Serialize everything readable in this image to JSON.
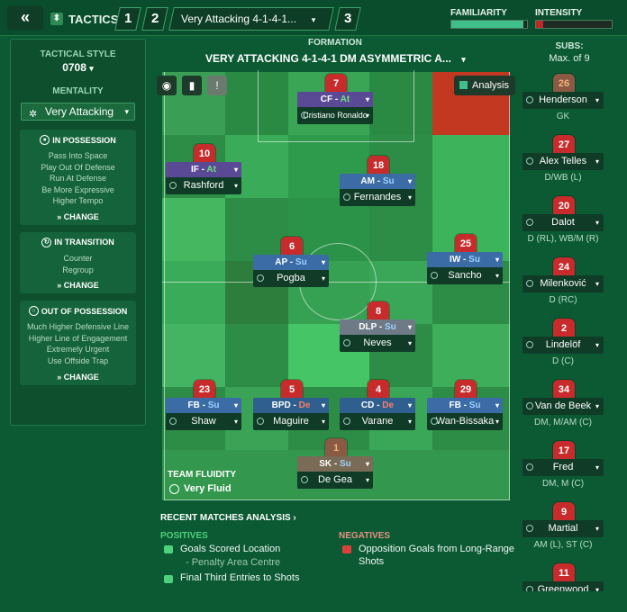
{
  "header": {
    "back_label": "«",
    "tactics_label": "TACTICS",
    "tab1": "1",
    "tab2": "2",
    "tab3": "3",
    "tactic_name": "Very Attacking 4-1-4-1...",
    "familiarity_label": "FAMILIARITY",
    "familiarity_value": 0.95,
    "intensity_label": "INTENSITY",
    "intensity_value": 0.1
  },
  "left": {
    "tactical_style_label": "TACTICAL STYLE",
    "tactical_style_value": "0708",
    "mentality_label": "MENTALITY",
    "mentality_value": "Very Attacking",
    "in_possession": {
      "title": "IN POSSESSION",
      "items": [
        "Pass Into Space",
        "Play Out Of Defense",
        "Run At Defense",
        "Be More Expressive",
        "Higher Tempo"
      ],
      "change": "CHANGE"
    },
    "in_transition": {
      "title": "IN TRANSITION",
      "items": [
        "Counter",
        "Regroup"
      ],
      "change": "CHANGE"
    },
    "out_possession": {
      "title": "OUT OF POSSESSION",
      "items": [
        "Much Higher Defensive Line",
        "Higher Line of Engagement",
        "Extremely Urgent",
        "Use Offside Trap"
      ],
      "change": "CHANGE"
    }
  },
  "formation": {
    "label": "FORMATION",
    "title": "VERY ATTACKING 4-1-4-1 DM ASYMMETRIC A..."
  },
  "toolbar": {
    "analysis": "Analysis"
  },
  "players": [
    {
      "num": "7",
      "role": "CF",
      "duty": "At",
      "name": "Cristiano Ronaldo"
    },
    {
      "num": "10",
      "role": "IF",
      "duty": "At",
      "name": "Rashford"
    },
    {
      "num": "18",
      "role": "AM",
      "duty": "Su",
      "name": "Fernandes"
    },
    {
      "num": "6",
      "role": "AP",
      "duty": "Su",
      "name": "Pogba"
    },
    {
      "num": "25",
      "role": "IW",
      "duty": "Su",
      "name": "Sancho"
    },
    {
      "num": "8",
      "role": "DLP",
      "duty": "Su",
      "name": "Neves"
    },
    {
      "num": "23",
      "role": "FB",
      "duty": "Su",
      "name": "Shaw"
    },
    {
      "num": "5",
      "role": "BPD",
      "duty": "De",
      "name": "Maguire"
    },
    {
      "num": "4",
      "role": "CD",
      "duty": "De",
      "name": "Varane"
    },
    {
      "num": "29",
      "role": "FB",
      "duty": "Su",
      "name": "Wan-Bissaka"
    },
    {
      "num": "1",
      "role": "SK",
      "duty": "Su",
      "name": "De Gea"
    }
  ],
  "fluidity": {
    "label": "TEAM FLUIDITY",
    "value": "Very Fluid"
  },
  "recent": {
    "title": "RECENT MATCHES ANALYSIS ›",
    "positives_label": "POSITIVES",
    "pos1": "Goals Scored Location",
    "pos1_sub": "- Penalty Area Centre",
    "pos2": "Final Third Entries to Shots",
    "negatives_label": "NEGATIVES",
    "neg1a": "Opposition Goals from Long-Range",
    "neg1b": "Shots"
  },
  "subs": {
    "label": "SUBS:",
    "max": "Max. of 9",
    "players": [
      {
        "num": "26",
        "name": "Henderson",
        "pos": "GK"
      },
      {
        "num": "27",
        "name": "Alex Telles",
        "pos": "D/WB (L)"
      },
      {
        "num": "20",
        "name": "Dalot",
        "pos": "D (RL), WB/M (R)"
      },
      {
        "num": "24",
        "name": "Milenković",
        "pos": "D (RC)"
      },
      {
        "num": "2",
        "name": "Lindelöf",
        "pos": "D (C)"
      },
      {
        "num": "34",
        "name": "Van de Beek",
        "pos": "DM, M/AM (C)"
      },
      {
        "num": "17",
        "name": "Fred",
        "pos": "DM, M (C)"
      },
      {
        "num": "9",
        "name": "Martial",
        "pos": "AM (L), ST (C)"
      },
      {
        "num": "11",
        "name": "Greenwood",
        "pos": ""
      }
    ]
  },
  "colors": {
    "attack": "#5b4a9a",
    "support": "#3f6ea8",
    "defend": "#2e5d8a",
    "keeper": "#7a6b57",
    "at_text": "#6fe07a",
    "su_text": "#9fd0ff",
    "de_text": "#ff7b6b"
  }
}
